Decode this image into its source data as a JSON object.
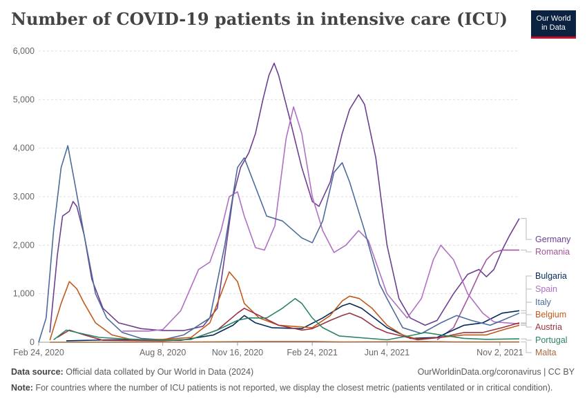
{
  "header": {
    "title": "Number of COVID-19 patients in intensive care (ICU)",
    "logo_line1": "Our World",
    "logo_line2": "in Data"
  },
  "footer": {
    "source_label": "Data source:",
    "source_text": "Official data collated by Our World in Data (2024)",
    "url_text": "OurWorldinData.org/coronavirus | CC BY",
    "note_label": "Note:",
    "note_text": "For countries where the number of ICU patients is not reported, we display the closest metric (patients ventilated or in critical condition)."
  },
  "colors": {
    "Germany": "#6d3e91",
    "Romania": "#a2559c",
    "Bulgaria": "#00295b",
    "Spain": "#b16fc4",
    "Italy": "#4c6a9c",
    "Belgium": "#c05917",
    "Austria": "#9a3140",
    "Portugal": "#2c8465",
    "Malta": "#a76a3e"
  },
  "chart_data": {
    "type": "line",
    "title": "Number of COVID-19 patients in intensive care (ICU)",
    "xlabel": "",
    "ylabel": "",
    "x_range": [
      "2020-02-24",
      "2021-11-28"
    ],
    "ylim": [
      0,
      6000
    ],
    "yticks": [
      0,
      1000,
      2000,
      3000,
      4000,
      5000,
      6000
    ],
    "ytick_labels": [
      "0",
      "1,000",
      "2,000",
      "3,000",
      "4,000",
      "5,000",
      "6,000"
    ],
    "xticks": [
      "2020-02-24",
      "2020-08-08",
      "2020-11-16",
      "2021-02-24",
      "2021-06-04",
      "2021-11-02"
    ],
    "xtick_labels": [
      "Feb 24, 2020",
      "Aug 8, 2020",
      "Nov 16, 2020",
      "Feb 24, 2021",
      "Jun 4, 2021",
      "Nov 2, 2021"
    ],
    "grid": true,
    "legend": "right",
    "series": [
      {
        "name": "Germany",
        "points": [
          [
            "2020-03-10",
            200
          ],
          [
            "2020-03-20",
            1800
          ],
          [
            "2020-03-27",
            2600
          ],
          [
            "2020-04-05",
            2700
          ],
          [
            "2020-04-10",
            2900
          ],
          [
            "2020-04-15",
            2800
          ],
          [
            "2020-04-25",
            2200
          ],
          [
            "2020-05-05",
            1300
          ],
          [
            "2020-05-20",
            700
          ],
          [
            "2020-06-10",
            400
          ],
          [
            "2020-07-10",
            280
          ],
          [
            "2020-08-08",
            240
          ],
          [
            "2020-09-05",
            240
          ],
          [
            "2020-10-01",
            330
          ],
          [
            "2020-10-20",
            700
          ],
          [
            "2020-11-01",
            2000
          ],
          [
            "2020-11-10",
            3000
          ],
          [
            "2020-11-20",
            3600
          ],
          [
            "2020-12-01",
            3900
          ],
          [
            "2020-12-10",
            4300
          ],
          [
            "2020-12-20",
            5000
          ],
          [
            "2020-12-28",
            5500
          ],
          [
            "2021-01-04",
            5750
          ],
          [
            "2021-01-10",
            5500
          ],
          [
            "2021-01-25",
            4600
          ],
          [
            "2021-02-10",
            3600
          ],
          [
            "2021-02-24",
            2900
          ],
          [
            "2021-03-05",
            2800
          ],
          [
            "2021-03-20",
            3300
          ],
          [
            "2021-04-05",
            4300
          ],
          [
            "2021-04-15",
            4800
          ],
          [
            "2021-04-27",
            5100
          ],
          [
            "2021-05-05",
            4900
          ],
          [
            "2021-05-20",
            3800
          ],
          [
            "2021-06-04",
            2000
          ],
          [
            "2021-06-20",
            900
          ],
          [
            "2021-07-05",
            500
          ],
          [
            "2021-07-25",
            350
          ],
          [
            "2021-08-10",
            450
          ],
          [
            "2021-09-01",
            1000
          ],
          [
            "2021-09-20",
            1400
          ],
          [
            "2021-10-05",
            1500
          ],
          [
            "2021-10-15",
            1350
          ],
          [
            "2021-10-25",
            1500
          ],
          [
            "2021-11-05",
            1900
          ],
          [
            "2021-11-15",
            2200
          ],
          [
            "2021-11-28",
            2550
          ]
        ]
      },
      {
        "name": "Romania",
        "points": [
          [
            "2021-08-10",
            50
          ],
          [
            "2021-09-01",
            300
          ],
          [
            "2021-09-20",
            900
          ],
          [
            "2021-10-05",
            1400
          ],
          [
            "2021-10-15",
            1700
          ],
          [
            "2021-10-25",
            1850
          ],
          [
            "2021-11-05",
            1900
          ],
          [
            "2021-11-28",
            1900
          ]
        ]
      },
      {
        "name": "Bulgaria",
        "points": [
          [
            "2020-04-01",
            30
          ],
          [
            "2020-06-01",
            50
          ],
          [
            "2020-09-01",
            40
          ],
          [
            "2020-10-15",
            150
          ],
          [
            "2020-11-10",
            350
          ],
          [
            "2020-11-25",
            550
          ],
          [
            "2020-12-10",
            400
          ],
          [
            "2021-01-01",
            300
          ],
          [
            "2021-02-10",
            280
          ],
          [
            "2021-03-10",
            500
          ],
          [
            "2021-04-05",
            750
          ],
          [
            "2021-04-15",
            800
          ],
          [
            "2021-05-01",
            700
          ],
          [
            "2021-06-04",
            300
          ],
          [
            "2021-07-05",
            80
          ],
          [
            "2021-08-10",
            100
          ],
          [
            "2021-09-15",
            350
          ],
          [
            "2021-10-10",
            400
          ],
          [
            "2021-11-05",
            600
          ],
          [
            "2021-11-28",
            650
          ]
        ]
      },
      {
        "name": "Spain",
        "points": [
          [
            "2020-06-15",
            230
          ],
          [
            "2020-07-20",
            230
          ],
          [
            "2020-08-08",
            260
          ],
          [
            "2020-09-01",
            650
          ],
          [
            "2020-09-25",
            1500
          ],
          [
            "2020-10-10",
            1650
          ],
          [
            "2020-10-25",
            2300
          ],
          [
            "2020-11-05",
            3000
          ],
          [
            "2020-11-16",
            3100
          ],
          [
            "2020-11-25",
            2600
          ],
          [
            "2020-12-10",
            1950
          ],
          [
            "2020-12-22",
            1900
          ],
          [
            "2021-01-05",
            2400
          ],
          [
            "2021-01-20",
            4200
          ],
          [
            "2021-01-30",
            4850
          ],
          [
            "2021-02-10",
            4300
          ],
          [
            "2021-02-24",
            3000
          ],
          [
            "2021-03-10",
            2300
          ],
          [
            "2021-03-25",
            1850
          ],
          [
            "2021-04-10",
            2000
          ],
          [
            "2021-04-27",
            2300
          ],
          [
            "2021-05-10",
            2100
          ],
          [
            "2021-06-04",
            1000
          ],
          [
            "2021-07-01",
            500
          ],
          [
            "2021-07-20",
            900
          ],
          [
            "2021-08-05",
            1700
          ],
          [
            "2021-08-15",
            2000
          ],
          [
            "2021-09-01",
            1700
          ],
          [
            "2021-09-20",
            1000
          ],
          [
            "2021-10-10",
            600
          ],
          [
            "2021-10-25",
            420
          ],
          [
            "2021-11-28",
            380
          ]
        ]
      },
      {
        "name": "Italy",
        "points": [
          [
            "2020-02-24",
            0
          ],
          [
            "2020-03-05",
            500
          ],
          [
            "2020-03-15",
            2300
          ],
          [
            "2020-03-25",
            3600
          ],
          [
            "2020-04-03",
            4050
          ],
          [
            "2020-04-12",
            3300
          ],
          [
            "2020-04-25",
            2200
          ],
          [
            "2020-05-10",
            1000
          ],
          [
            "2020-05-25",
            500
          ],
          [
            "2020-06-15",
            200
          ],
          [
            "2020-07-10",
            80
          ],
          [
            "2020-08-08",
            50
          ],
          [
            "2020-09-05",
            150
          ],
          [
            "2020-10-10",
            500
          ],
          [
            "2020-10-30",
            2000
          ],
          [
            "2020-11-16",
            3600
          ],
          [
            "2020-11-25",
            3800
          ],
          [
            "2020-12-10",
            3200
          ],
          [
            "2020-12-25",
            2600
          ],
          [
            "2021-01-15",
            2500
          ],
          [
            "2021-02-10",
            2150
          ],
          [
            "2021-02-24",
            2050
          ],
          [
            "2021-03-10",
            2500
          ],
          [
            "2021-03-25",
            3500
          ],
          [
            "2021-04-05",
            3700
          ],
          [
            "2021-04-15",
            3300
          ],
          [
            "2021-05-05",
            2300
          ],
          [
            "2021-05-25",
            1200
          ],
          [
            "2021-06-04",
            900
          ],
          [
            "2021-06-25",
            300
          ],
          [
            "2021-07-20",
            180
          ],
          [
            "2021-08-15",
            400
          ],
          [
            "2021-09-05",
            550
          ],
          [
            "2021-09-25",
            450
          ],
          [
            "2021-10-20",
            350
          ],
          [
            "2021-11-05",
            450
          ],
          [
            "2021-11-28",
            600
          ]
        ]
      },
      {
        "name": "Belgium",
        "points": [
          [
            "2020-03-10",
            40
          ],
          [
            "2020-03-25",
            800
          ],
          [
            "2020-04-05",
            1250
          ],
          [
            "2020-04-15",
            1100
          ],
          [
            "2020-04-25",
            800
          ],
          [
            "2020-05-10",
            400
          ],
          [
            "2020-06-01",
            150
          ],
          [
            "2020-07-01",
            40
          ],
          [
            "2020-08-08",
            60
          ],
          [
            "2020-09-15",
            100
          ],
          [
            "2020-10-10",
            400
          ],
          [
            "2020-10-25",
            1000
          ],
          [
            "2020-11-05",
            1450
          ],
          [
            "2020-11-16",
            1250
          ],
          [
            "2020-11-25",
            800
          ],
          [
            "2020-12-15",
            500
          ],
          [
            "2021-01-10",
            350
          ],
          [
            "2021-02-24",
            300
          ],
          [
            "2021-03-20",
            550
          ],
          [
            "2021-04-05",
            850
          ],
          [
            "2021-04-15",
            950
          ],
          [
            "2021-04-28",
            900
          ],
          [
            "2021-05-15",
            700
          ],
          [
            "2021-06-04",
            350
          ],
          [
            "2021-06-25",
            150
          ],
          [
            "2021-07-15",
            60
          ],
          [
            "2021-08-15",
            100
          ],
          [
            "2021-09-15",
            150
          ],
          [
            "2021-10-15",
            150
          ],
          [
            "2021-11-05",
            250
          ],
          [
            "2021-11-28",
            350
          ]
        ]
      },
      {
        "name": "Austria",
        "points": [
          [
            "2020-03-20",
            100
          ],
          [
            "2020-04-05",
            250
          ],
          [
            "2020-04-25",
            150
          ],
          [
            "2020-05-20",
            40
          ],
          [
            "2020-08-08",
            30
          ],
          [
            "2020-09-15",
            60
          ],
          [
            "2020-10-20",
            250
          ],
          [
            "2020-11-16",
            600
          ],
          [
            "2020-11-25",
            700
          ],
          [
            "2020-12-15",
            550
          ],
          [
            "2021-01-10",
            350
          ],
          [
            "2021-02-10",
            250
          ],
          [
            "2021-02-24",
            280
          ],
          [
            "2021-03-20",
            450
          ],
          [
            "2021-04-05",
            550
          ],
          [
            "2021-04-15",
            600
          ],
          [
            "2021-05-01",
            500
          ],
          [
            "2021-05-20",
            300
          ],
          [
            "2021-06-04",
            200
          ],
          [
            "2021-07-15",
            50
          ],
          [
            "2021-08-15",
            100
          ],
          [
            "2021-09-15",
            200
          ],
          [
            "2021-10-10",
            200
          ],
          [
            "2021-11-05",
            300
          ],
          [
            "2021-11-28",
            400
          ]
        ]
      },
      {
        "name": "Portugal",
        "points": [
          [
            "2020-03-15",
            50
          ],
          [
            "2020-04-01",
            250
          ],
          [
            "2020-04-15",
            200
          ],
          [
            "2020-05-15",
            100
          ],
          [
            "2020-06-15",
            70
          ],
          [
            "2020-08-08",
            40
          ],
          [
            "2020-09-15",
            60
          ],
          [
            "2020-10-20",
            250
          ],
          [
            "2020-11-16",
            450
          ],
          [
            "2020-12-01",
            500
          ],
          [
            "2020-12-25",
            500
          ],
          [
            "2021-01-15",
            700
          ],
          [
            "2021-02-01",
            900
          ],
          [
            "2021-02-10",
            800
          ],
          [
            "2021-02-24",
            500
          ],
          [
            "2021-03-10",
            300
          ],
          [
            "2021-04-01",
            130
          ],
          [
            "2021-06-04",
            50
          ],
          [
            "2021-07-10",
            150
          ],
          [
            "2021-07-25",
            200
          ],
          [
            "2021-08-15",
            150
          ],
          [
            "2021-09-15",
            80
          ],
          [
            "2021-10-15",
            60
          ],
          [
            "2021-11-28",
            70
          ]
        ]
      },
      {
        "name": "Malta",
        "points": [
          [
            "2020-03-10",
            0
          ],
          [
            "2020-10-01",
            5
          ],
          [
            "2020-12-20",
            15
          ],
          [
            "2021-02-24",
            15
          ],
          [
            "2021-04-01",
            5
          ],
          [
            "2021-07-25",
            15
          ],
          [
            "2021-09-01",
            5
          ],
          [
            "2021-11-28",
            5
          ]
        ]
      }
    ],
    "legend_order": [
      "Germany",
      "Romania",
      "Bulgaria",
      "Spain",
      "Italy",
      "Belgium",
      "Austria",
      "Portugal",
      "Malta"
    ]
  }
}
